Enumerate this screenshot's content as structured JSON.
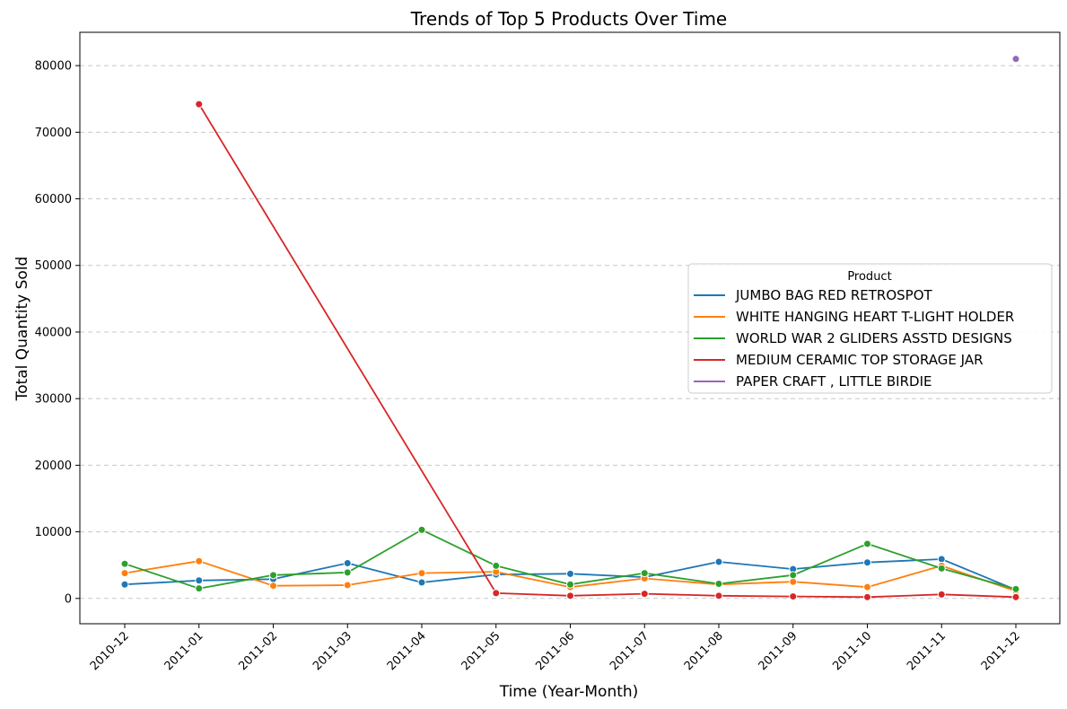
{
  "chart_data": {
    "type": "line",
    "title": "Trends of Top 5 Products Over Time",
    "xlabel": "Time (Year-Month)",
    "ylabel": "Total Quantity Sold",
    "categories": [
      "2010-12",
      "2011-01",
      "2011-02",
      "2011-03",
      "2011-04",
      "2011-05",
      "2011-06",
      "2011-07",
      "2011-08",
      "2011-09",
      "2011-10",
      "2011-11",
      "2011-12"
    ],
    "yticks": [
      0,
      10000,
      20000,
      30000,
      40000,
      50000,
      60000,
      70000,
      80000
    ],
    "ylim": [
      -3800,
      85000
    ],
    "grid": "horizontal dashed",
    "legend": {
      "title": "Product",
      "placement": "center-right"
    },
    "series": [
      {
        "name": "JUMBO BAG RED RETROSPOT",
        "color": "#1f77b4",
        "values": [
          2100,
          2700,
          2900,
          5300,
          2400,
          3600,
          3700,
          3200,
          5500,
          4400,
          5400,
          5900,
          1300
        ]
      },
      {
        "name": "WHITE HANGING HEART T-LIGHT HOLDER",
        "color": "#ff7f0e",
        "values": [
          3800,
          5600,
          1900,
          2000,
          3800,
          4000,
          1700,
          3000,
          2100,
          2500,
          1700,
          4900,
          1100
        ]
      },
      {
        "name": "WORLD WAR 2 GLIDERS ASSTD DESIGNS",
        "color": "#2ca02c",
        "values": [
          5200,
          1500,
          3500,
          3900,
          10300,
          4900,
          2100,
          3800,
          2200,
          3500,
          8200,
          4500,
          1400
        ]
      },
      {
        "name": "MEDIUM CERAMIC TOP STORAGE JAR",
        "color": "#d62728",
        "values": [
          null,
          74200,
          null,
          null,
          null,
          800,
          400,
          700,
          400,
          300,
          200,
          600,
          200
        ]
      },
      {
        "name": "PAPER CRAFT , LITTLE BIRDIE",
        "color": "#9467bd",
        "values": [
          null,
          null,
          null,
          null,
          null,
          null,
          null,
          null,
          null,
          null,
          null,
          null,
          81000
        ]
      }
    ]
  }
}
